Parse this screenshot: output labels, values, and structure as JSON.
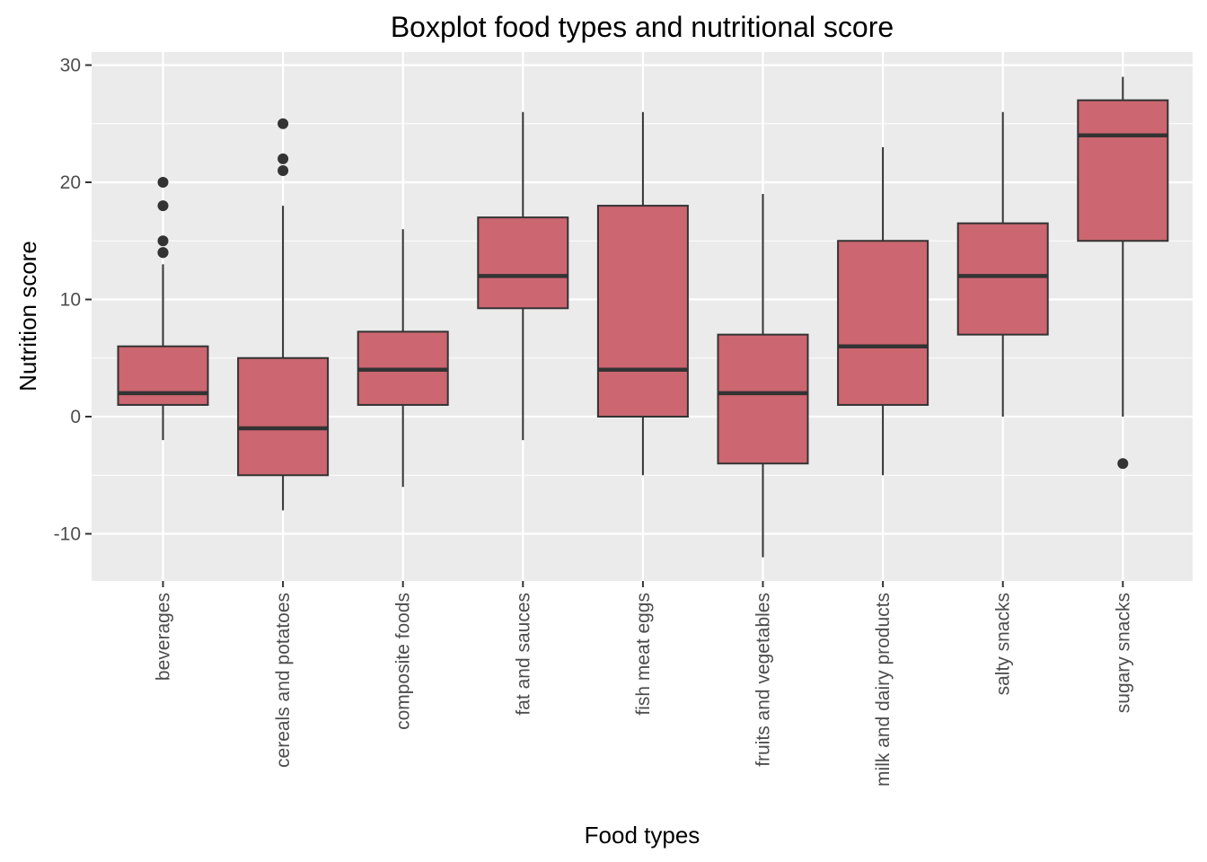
{
  "chart_data": {
    "type": "boxplot",
    "title": "Boxplot food types and nutritional score",
    "xlabel": "Food types",
    "ylabel": "Nutrition score",
    "ylim": [
      -14,
      31
    ],
    "yticks": [
      -10,
      0,
      10,
      20,
      30
    ],
    "grid": true,
    "legend": "none",
    "colors": {
      "box_fill": "#CC6670",
      "box_stroke": "#333333",
      "panel_bg": "#EBEBEB",
      "grid": "#FFFFFF"
    },
    "categories": [
      "beverages",
      "cereals and potatoes",
      "composite foods",
      "fat and sauces",
      "fish meat eggs",
      "fruits and vegetables",
      "milk and dairy products",
      "salty snacks",
      "sugary snacks"
    ],
    "boxes": [
      {
        "category": "beverages",
        "whisker_low": -2,
        "q1": 1,
        "median": 2,
        "q3": 6,
        "whisker_high": 13,
        "outliers": [
          14,
          14,
          15,
          18,
          20
        ]
      },
      {
        "category": "cereals and potatoes",
        "whisker_low": -8,
        "q1": -5,
        "median": -1,
        "q3": 5,
        "whisker_high": 18,
        "outliers": [
          21,
          22,
          25
        ]
      },
      {
        "category": "composite foods",
        "whisker_low": -6,
        "q1": 1,
        "median": 4,
        "q3": 7.25,
        "whisker_high": 16,
        "outliers": []
      },
      {
        "category": "fat and sauces",
        "whisker_low": -2,
        "q1": 9.25,
        "median": 12,
        "q3": 17,
        "whisker_high": 26,
        "outliers": []
      },
      {
        "category": "fish meat eggs",
        "whisker_low": -5,
        "q1": 0,
        "median": 4,
        "q3": 18,
        "whisker_high": 26,
        "outliers": []
      },
      {
        "category": "fruits and vegetables",
        "whisker_low": -12,
        "q1": -4,
        "median": 2,
        "q3": 7,
        "whisker_high": 19,
        "outliers": []
      },
      {
        "category": "milk and dairy products",
        "whisker_low": -5,
        "q1": 1,
        "median": 6,
        "q3": 15,
        "whisker_high": 23,
        "outliers": []
      },
      {
        "category": "salty snacks",
        "whisker_low": 0,
        "q1": 7,
        "median": 12,
        "q3": 16.5,
        "whisker_high": 26,
        "outliers": []
      },
      {
        "category": "sugary snacks",
        "whisker_low": 0,
        "q1": 15,
        "median": 24,
        "q3": 27,
        "whisker_high": 29,
        "outliers": [
          -4
        ]
      }
    ]
  }
}
